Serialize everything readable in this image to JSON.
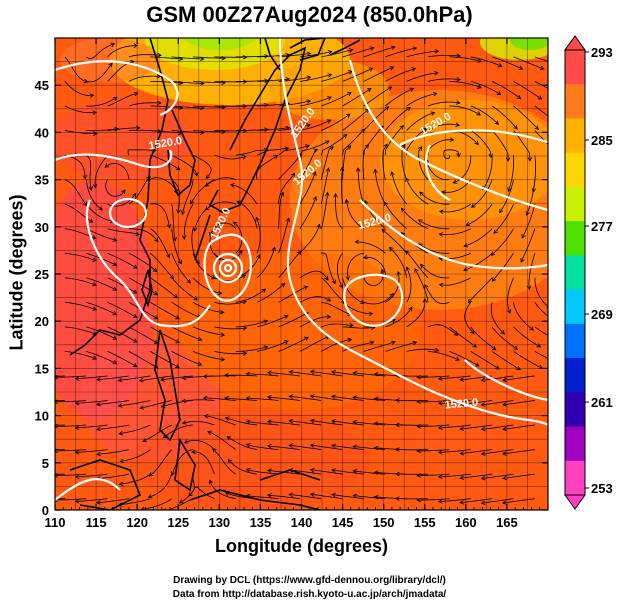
{
  "title": "GSM 00Z27Aug2024 (850.0hPa)",
  "xlabel": "Longitude (degrees)",
  "ylabel": "Latitude (degrees)",
  "credits": [
    "Drawing by DCL (https://www.gfd-dennou.org/library/dcl/)",
    "Data from http://database.rish.kyoto-u.ac.jp/arch/jmadata/"
  ],
  "map": {
    "lon_range": [
      110,
      170
    ],
    "lat_range": [
      0,
      50
    ],
    "x_ticks": [
      "110",
      "115",
      "120",
      "125",
      "130",
      "135",
      "140",
      "145",
      "150",
      "155",
      "160",
      "165"
    ],
    "y_ticks": [
      "0",
      "5",
      "10",
      "15",
      "20",
      "25",
      "30",
      "35",
      "40",
      "45"
    ],
    "grid": true,
    "coastline_color": "#000000",
    "streamline_color": "#000000",
    "contour_color": "#ffffff"
  },
  "colorbar": {
    "labels": [
      "293",
      "285",
      "277",
      "269",
      "261",
      "253"
    ],
    "colors": [
      "#ff4a4a",
      "#ff7a1a",
      "#ffb000",
      "#ffd700",
      "#c8f000",
      "#50e000",
      "#00e0a0",
      "#00c8ff",
      "#0070ff",
      "#0020d0",
      "#3000b0",
      "#a000c0",
      "#ff40c0"
    ]
  },
  "contour_labels": [
    {
      "text": "1520.0",
      "lon": 123.5,
      "lat": 38.5,
      "rotate": -10
    },
    {
      "text": "1520.0",
      "lon": 140.5,
      "lat": 40.8,
      "rotate": -55
    },
    {
      "text": "1520.0",
      "lon": 141.0,
      "lat": 35.5,
      "rotate": -40
    },
    {
      "text": "1520.0",
      "lon": 130.5,
      "lat": 30.2,
      "rotate": -65
    },
    {
      "text": "1520.0",
      "lon": 156.5,
      "lat": 40.6,
      "rotate": -30
    },
    {
      "text": "1520.0",
      "lon": 149.0,
      "lat": 30.2,
      "rotate": -15
    },
    {
      "text": "1520.0",
      "lon": 159.5,
      "lat": 10.9,
      "rotate": -5
    }
  ]
}
